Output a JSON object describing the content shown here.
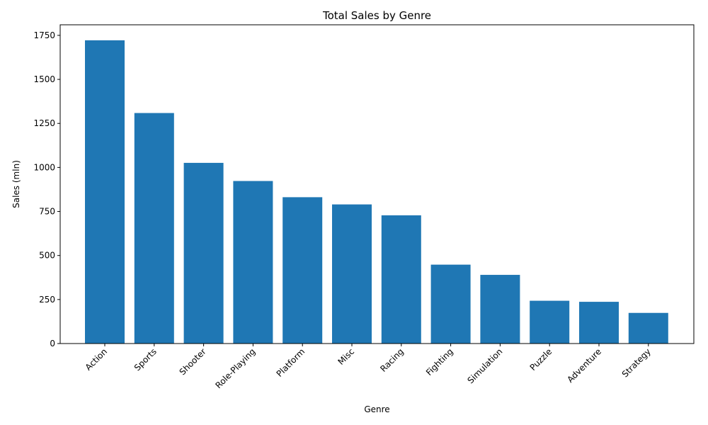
{
  "chart_data": {
    "type": "bar",
    "title": "Total Sales by Genre",
    "xlabel": "Genre",
    "ylabel": "Sales (mln)",
    "categories": [
      "Action",
      "Sports",
      "Shooter",
      "Role-Playing",
      "Platform",
      "Misc",
      "Racing",
      "Fighting",
      "Simulation",
      "Puzzle",
      "Adventure",
      "Strategy"
    ],
    "values": [
      1722,
      1309,
      1026,
      923,
      831,
      790,
      728,
      448,
      390,
      243,
      237,
      174
    ],
    "ylim": [
      0,
      1810
    ],
    "yticks": [
      0,
      250,
      500,
      750,
      1000,
      1250,
      1500,
      1750
    ],
    "bar_color": "#1f77b4",
    "grid": false,
    "legend": "none"
  }
}
